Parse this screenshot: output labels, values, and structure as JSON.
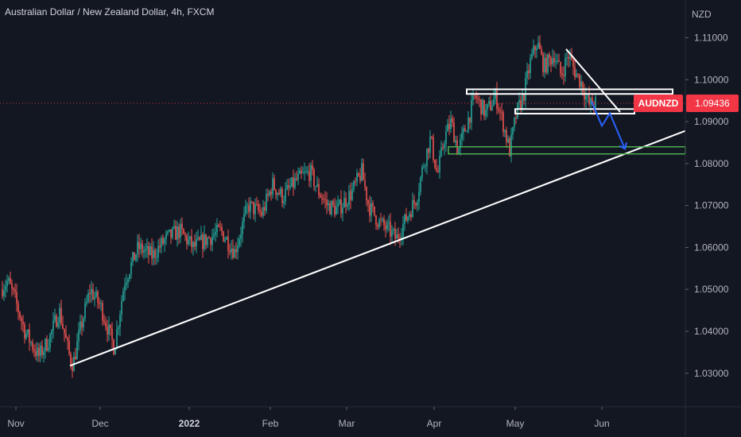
{
  "header": {
    "title": "Australian Dollar / New Zealand Dollar, 4h, FXCM"
  },
  "colors": {
    "background": "#131722",
    "up": "#26a69a",
    "down": "#ef5350",
    "drawing": "#ffffff",
    "support": "#4caf50",
    "projection": "#2962ff",
    "price_tag": "#f23645"
  },
  "chart_data": {
    "type": "candlestick",
    "symbol": "AUDNZD",
    "currency": "NZD",
    "timeframe": "4h",
    "last_price": 1.09436,
    "last_price_label": "1.09436",
    "ylim": [
      1.022,
      1.119
    ],
    "y_ticks": [
      "1.03000",
      "1.04000",
      "1.05000",
      "1.06000",
      "1.07000",
      "1.08000",
      "1.09000",
      "1.10000",
      "1.11000"
    ],
    "x_ticks": [
      "Nov",
      "Dec",
      "2022",
      "Feb",
      "Mar",
      "Apr",
      "May",
      "Jun"
    ],
    "price_path": [
      {
        "t": 0.0,
        "v": 1.05
      },
      {
        "t": 0.01,
        "v": 1.052
      },
      {
        "t": 0.02,
        "v": 1.048
      },
      {
        "t": 0.035,
        "v": 1.04
      },
      {
        "t": 0.055,
        "v": 1.034
      },
      {
        "t": 0.07,
        "v": 1.038
      },
      {
        "t": 0.085,
        "v": 1.045
      },
      {
        "t": 0.1,
        "v": 1.034
      },
      {
        "t": 0.105,
        "v": 1.032
      },
      {
        "t": 0.115,
        "v": 1.04
      },
      {
        "t": 0.13,
        "v": 1.05
      },
      {
        "t": 0.145,
        "v": 1.046
      },
      {
        "t": 0.165,
        "v": 1.036
      },
      {
        "t": 0.18,
        "v": 1.052
      },
      {
        "t": 0.2,
        "v": 1.06
      },
      {
        "t": 0.22,
        "v": 1.058
      },
      {
        "t": 0.24,
        "v": 1.062
      },
      {
        "t": 0.26,
        "v": 1.064
      },
      {
        "t": 0.28,
        "v": 1.06
      },
      {
        "t": 0.3,
        "v": 1.062
      },
      {
        "t": 0.32,
        "v": 1.064
      },
      {
        "t": 0.34,
        "v": 1.059
      },
      {
        "t": 0.36,
        "v": 1.07
      },
      {
        "t": 0.38,
        "v": 1.068
      },
      {
        "t": 0.395,
        "v": 1.075
      },
      {
        "t": 0.41,
        "v": 1.072
      },
      {
        "t": 0.43,
        "v": 1.076
      },
      {
        "t": 0.45,
        "v": 1.078
      },
      {
        "t": 0.46,
        "v": 1.074
      },
      {
        "t": 0.475,
        "v": 1.07
      },
      {
        "t": 0.49,
        "v": 1.069
      },
      {
        "t": 0.51,
        "v": 1.073
      },
      {
        "t": 0.525,
        "v": 1.078
      },
      {
        "t": 0.535,
        "v": 1.07
      },
      {
        "t": 0.55,
        "v": 1.066
      },
      {
        "t": 0.565,
        "v": 1.064
      },
      {
        "t": 0.575,
        "v": 1.062
      },
      {
        "t": 0.59,
        "v": 1.067
      },
      {
        "t": 0.605,
        "v": 1.072
      },
      {
        "t": 0.615,
        "v": 1.08
      },
      {
        "t": 0.625,
        "v": 1.086
      },
      {
        "t": 0.635,
        "v": 1.077
      },
      {
        "t": 0.645,
        "v": 1.086
      },
      {
        "t": 0.655,
        "v": 1.09
      },
      {
        "t": 0.665,
        "v": 1.083
      },
      {
        "t": 0.675,
        "v": 1.088
      },
      {
        "t": 0.69,
        "v": 1.096
      },
      {
        "t": 0.705,
        "v": 1.092
      },
      {
        "t": 0.72,
        "v": 1.096
      },
      {
        "t": 0.73,
        "v": 1.09
      },
      {
        "t": 0.74,
        "v": 1.083
      },
      {
        "t": 0.75,
        "v": 1.092
      },
      {
        "t": 0.76,
        "v": 1.096
      },
      {
        "t": 0.77,
        "v": 1.104
      },
      {
        "t": 0.78,
        "v": 1.109
      },
      {
        "t": 0.79,
        "v": 1.103
      },
      {
        "t": 0.805,
        "v": 1.106
      },
      {
        "t": 0.815,
        "v": 1.101
      },
      {
        "t": 0.825,
        "v": 1.106
      },
      {
        "t": 0.835,
        "v": 1.102
      },
      {
        "t": 0.845,
        "v": 1.099
      },
      {
        "t": 0.855,
        "v": 1.094
      },
      {
        "t": 0.865,
        "v": 1.0944
      }
    ]
  }
}
